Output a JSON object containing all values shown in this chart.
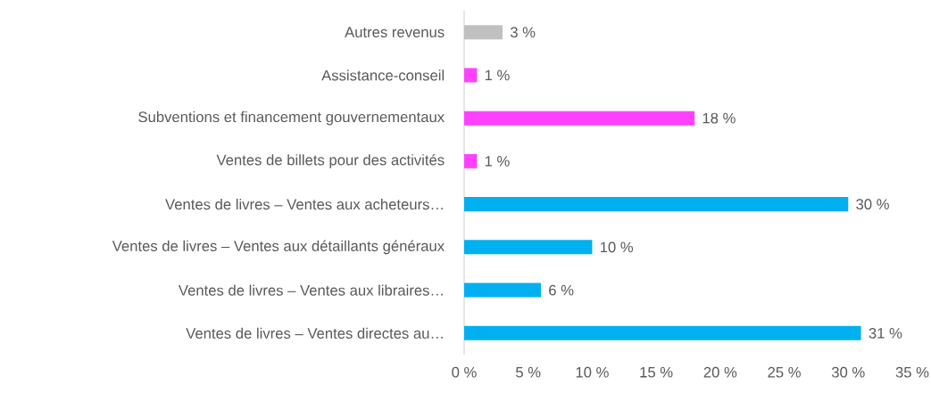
{
  "chart_data": {
    "type": "bar",
    "orientation": "horizontal",
    "categories": [
      "Autres revenus",
      "Assistance-conseil",
      "Subventions et financement gouvernementaux",
      "Ventes de billets pour des activités",
      "Ventes de livres – Ventes aux acheteurs…",
      "Ventes de livres – Ventes aux détaillants généraux",
      "Ventes de livres – Ventes aux libraires…",
      "Ventes de livres – Ventes directes au…"
    ],
    "values": [
      3,
      1,
      18,
      1,
      30,
      10,
      6,
      31
    ],
    "value_labels": [
      "3 %",
      "1 %",
      "18 %",
      "1 %",
      "30 %",
      "10 %",
      "6 %",
      "31 %"
    ],
    "colors": [
      "#c0c0c0",
      "#ff40ff",
      "#ff40ff",
      "#ff40ff",
      "#00b0f0",
      "#00b0f0",
      "#00b0f0",
      "#00b0f0"
    ],
    "xlim": [
      0,
      35
    ],
    "xticks": [
      {
        "value": 0,
        "label": "0 %"
      },
      {
        "value": 5,
        "label": "5 %"
      },
      {
        "value": 10,
        "label": "10 %"
      },
      {
        "value": 15,
        "label": "15 %"
      },
      {
        "value": 20,
        "label": "20 %"
      },
      {
        "value": 25,
        "label": "25 %"
      },
      {
        "value": 30,
        "label": "30 %"
      },
      {
        "value": 35,
        "label": "35 %"
      }
    ]
  }
}
